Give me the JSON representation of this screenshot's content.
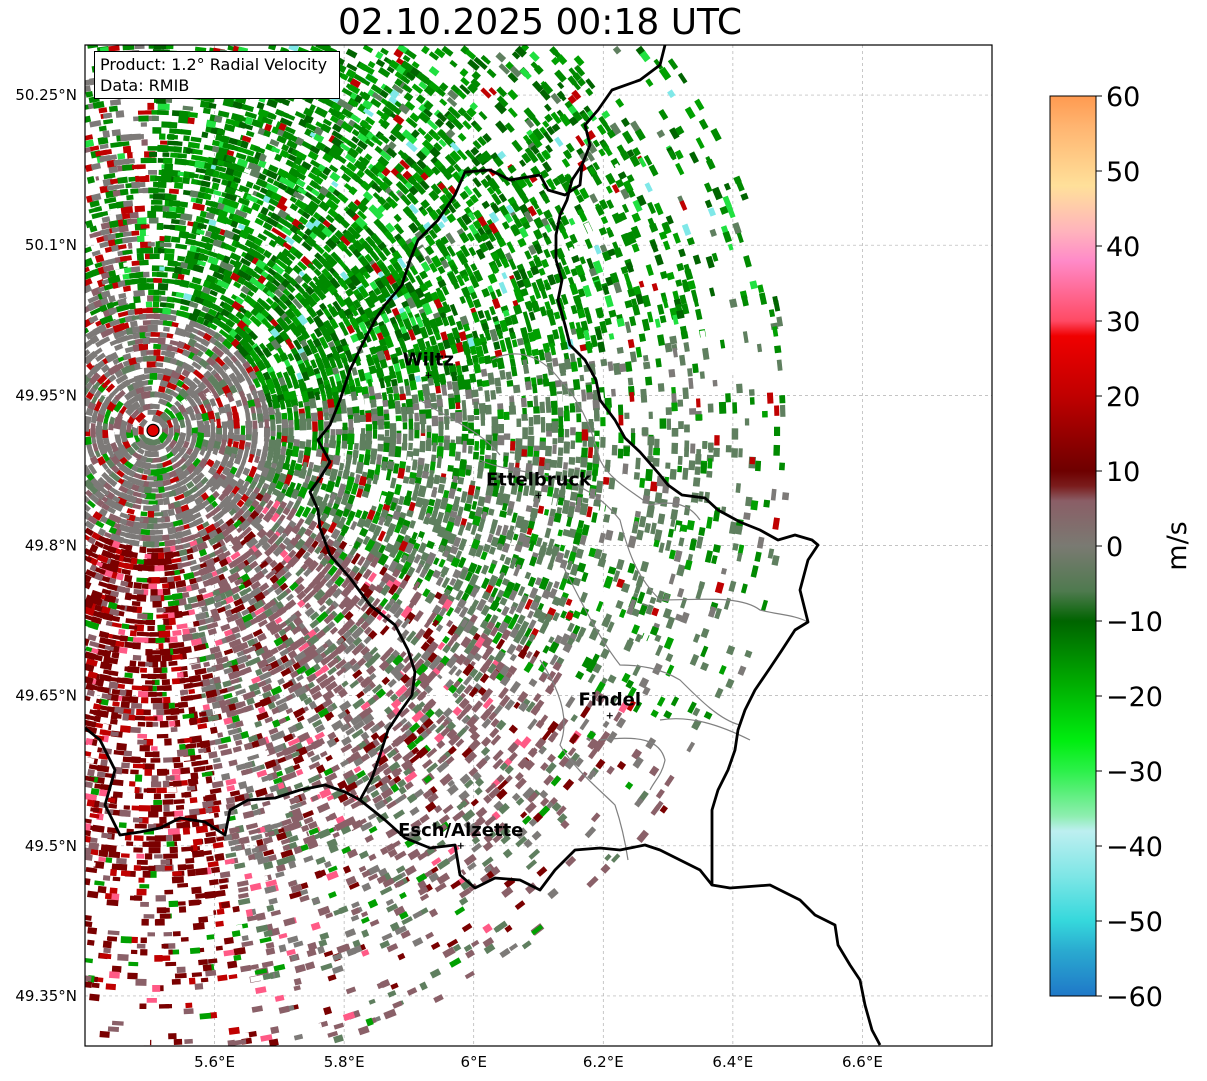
{
  "title": "02.10.2025 00:18 UTC",
  "info": {
    "product": "Product: 1.2° Radial Velocity",
    "source": "Data: RMIB"
  },
  "axes": {
    "lon_range": [
      5.4,
      6.8
    ],
    "lat_range": [
      49.3,
      50.3
    ],
    "x_ticks": [
      {
        "value": 5.6,
        "label": "5.6°E"
      },
      {
        "value": 5.8,
        "label": "5.8°E"
      },
      {
        "value": 6.0,
        "label": "6°E"
      },
      {
        "value": 6.2,
        "label": "6.2°E"
      },
      {
        "value": 6.4,
        "label": "6.4°E"
      },
      {
        "value": 6.6,
        "label": "6.6°E"
      }
    ],
    "y_ticks": [
      {
        "value": 50.25,
        "label": "50.25°N"
      },
      {
        "value": 50.1,
        "label": "50.1°N"
      },
      {
        "value": 49.95,
        "label": "49.95°N"
      },
      {
        "value": 49.8,
        "label": "49.8°N"
      },
      {
        "value": 49.65,
        "label": "49.65°N"
      },
      {
        "value": 49.5,
        "label": "49.5°N"
      },
      {
        "value": 49.35,
        "label": "49.35°N"
      }
    ]
  },
  "radar": {
    "lon": 5.505,
    "lat": 49.915,
    "marker_color": "#e00000"
  },
  "cities": [
    {
      "name": "Wiltz",
      "lon": 5.93,
      "lat": 49.97
    },
    {
      "name": "Ettelbruck",
      "lon": 6.1,
      "lat": 49.85
    },
    {
      "name": "Findel",
      "lon": 6.21,
      "lat": 49.63
    },
    {
      "name": "Esch/Alzette",
      "lon": 5.98,
      "lat": 49.5
    }
  ],
  "colorbar": {
    "label": "m/s",
    "min": -60,
    "max": 60,
    "ticks": [
      {
        "value": 60,
        "label": "60"
      },
      {
        "value": 50,
        "label": "50"
      },
      {
        "value": 40,
        "label": "40"
      },
      {
        "value": 30,
        "label": "30"
      },
      {
        "value": 20,
        "label": "20"
      },
      {
        "value": 10,
        "label": "10"
      },
      {
        "value": 0,
        "label": "0"
      },
      {
        "value": -10,
        "label": "−10"
      },
      {
        "value": -20,
        "label": "−20"
      },
      {
        "value": -30,
        "label": "−30"
      },
      {
        "value": -40,
        "label": "−40"
      },
      {
        "value": -50,
        "label": "−50"
      },
      {
        "value": -60,
        "label": "−60"
      }
    ],
    "stops": [
      {
        "value": -60,
        "color": "#1f78c8"
      },
      {
        "value": -54,
        "color": "#2aaad0"
      },
      {
        "value": -50,
        "color": "#35d8dc"
      },
      {
        "value": -44,
        "color": "#7ee6e6"
      },
      {
        "value": -38,
        "color": "#bdeff0"
      },
      {
        "value": -36,
        "color": "#8eeeb0"
      },
      {
        "value": -30,
        "color": "#2cf04a"
      },
      {
        "value": -26,
        "color": "#00ee10"
      },
      {
        "value": -18,
        "color": "#00aa00"
      },
      {
        "value": -10,
        "color": "#006400"
      },
      {
        "value": -6,
        "color": "#4f7a4f"
      },
      {
        "value": 0,
        "color": "#7a7a72"
      },
      {
        "value": 6,
        "color": "#8a5e66"
      },
      {
        "value": 8,
        "color": "#7a1c1c"
      },
      {
        "value": 10,
        "color": "#6e0000"
      },
      {
        "value": 20,
        "color": "#c00000"
      },
      {
        "value": 28,
        "color": "#f00000"
      },
      {
        "value": 30,
        "color": "#ff4a64"
      },
      {
        "value": 38,
        "color": "#ff8ac8"
      },
      {
        "value": 42,
        "color": "#ffb4bc"
      },
      {
        "value": 48,
        "color": "#ffe09a"
      },
      {
        "value": 56,
        "color": "#ffb470"
      },
      {
        "value": 60,
        "color": "#ff9a50"
      }
    ]
  },
  "colors": {
    "green_dark": "#006400",
    "green": "#008a00",
    "green_mid": "#00a000",
    "green_light": "#20e040",
    "grey_green": "#5f7f5f",
    "grey": "#7d7a78",
    "grey_red": "#8a6068",
    "dark_red": "#7a0000",
    "red": "#c00000",
    "pink": "#ff5a86",
    "orange": "#f5a060",
    "cyan": "#7fe8e8",
    "border": "#000000",
    "admin": "#808080"
  }
}
